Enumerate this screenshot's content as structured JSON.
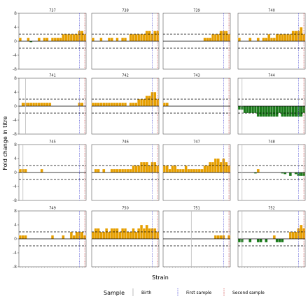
{
  "chart_data": {
    "type": "bar",
    "ylabel": "Fold change in titre",
    "xlabel": "Strain",
    "ylim": [
      -8,
      8
    ],
    "y_ticks": [
      -8,
      -4,
      0,
      4,
      8
    ],
    "reference_lines": {
      "upper": 2,
      "lower": -2,
      "baseline": 0
    },
    "n_strains": 25,
    "legend": {
      "title": "Sample",
      "position": "bottom",
      "items": [
        {
          "label": "Birth",
          "color": "#bdbdbd",
          "style": "solid"
        },
        {
          "label": "First sample",
          "color": "#6a6adb",
          "style": "dotted"
        },
        {
          "label": "Second sample",
          "color": "#d96464",
          "style": "dotted"
        }
      ]
    },
    "colors": {
      "positive": "#e69f00",
      "negative": "#1a7a1a",
      "bar_outline": "#ffffff"
    },
    "panels": [
      {
        "id": "737",
        "birth": null,
        "first": 22,
        "second": 24,
        "values": [
          1,
          0,
          0,
          1,
          -0.3,
          0,
          0,
          1,
          0,
          1,
          1,
          0,
          1,
          1,
          1,
          1,
          2,
          2,
          2,
          2,
          2,
          2,
          3,
          3,
          2
        ]
      },
      {
        "id": "738",
        "birth": null,
        "first": 22,
        "second": 24,
        "values": [
          1,
          0,
          0,
          1,
          0,
          0,
          1,
          1,
          0,
          1,
          0,
          1,
          1,
          0,
          2,
          2,
          2,
          2,
          2,
          2,
          3,
          3,
          2,
          3,
          3
        ]
      },
      {
        "id": "739",
        "birth": null,
        "first": 22,
        "second": 24,
        "values": [
          0,
          0,
          0,
          0,
          0,
          0,
          0,
          0,
          0,
          0,
          0,
          0,
          0,
          0,
          0,
          1,
          1,
          1,
          2,
          2,
          2,
          3,
          3,
          3,
          2
        ]
      },
      {
        "id": "740",
        "birth": null,
        "first": 22,
        "second": 24,
        "values": [
          1,
          0,
          0,
          0,
          1,
          0,
          0,
          1,
          0,
          1,
          1,
          2,
          1,
          1,
          2,
          2,
          2,
          2,
          2,
          2,
          3,
          3,
          3,
          4,
          2
        ]
      },
      {
        "id": "741",
        "birth": 2,
        "first": 22,
        "second": 24,
        "values": [
          0,
          1,
          1,
          1,
          1,
          1,
          1,
          1,
          1,
          1,
          1,
          1,
          0,
          0,
          0,
          0,
          0,
          0,
          0,
          0,
          0,
          0,
          1,
          1,
          0
        ]
      },
      {
        "id": "742",
        "birth": null,
        "first": 22,
        "second": 24,
        "values": [
          1,
          1,
          1,
          1,
          1,
          1,
          1,
          1,
          1,
          1,
          1,
          1,
          1,
          0,
          1,
          1,
          1,
          2,
          2,
          2,
          3,
          3,
          4,
          4,
          2
        ]
      },
      {
        "id": "743",
        "birth": null,
        "first": 22,
        "second": 24,
        "values": [
          1,
          1,
          0,
          0,
          0,
          0,
          0,
          0,
          0,
          0,
          0,
          0,
          0,
          0,
          0,
          0,
          0,
          0,
          0,
          0,
          0,
          0,
          0,
          0,
          0
        ]
      },
      {
        "id": "744",
        "birth": 1,
        "first": 22,
        "second": 24,
        "values": [
          -1,
          -1,
          -2,
          -2,
          -2,
          -2,
          -2,
          -3,
          -3,
          -3,
          -3,
          -3,
          -3,
          -3,
          -3,
          -2,
          -3,
          -3,
          -3,
          -3,
          -3,
          -3,
          -3,
          -3,
          -2
        ]
      },
      {
        "id": "745",
        "birth": 1,
        "first": 22,
        "second": 24,
        "values": [
          1,
          1,
          1,
          0,
          0,
          0,
          0,
          0,
          1,
          0,
          0,
          0,
          0,
          0,
          0,
          0,
          0,
          0,
          0,
          0,
          0,
          0,
          0,
          0,
          0
        ]
      },
      {
        "id": "746",
        "birth": null,
        "first": 22,
        "second": 24,
        "values": [
          0,
          1,
          1,
          0,
          1,
          0,
          0,
          1,
          1,
          1,
          1,
          1,
          1,
          1,
          1,
          2,
          2,
          2,
          3,
          3,
          3,
          2,
          3,
          3,
          2
        ]
      },
      {
        "id": "747",
        "birth": null,
        "first": 22,
        "second": 24,
        "values": [
          2,
          2,
          1,
          2,
          2,
          1,
          1,
          1,
          2,
          1,
          1,
          1,
          1,
          1,
          1,
          2,
          2,
          3,
          3,
          4,
          4,
          3,
          4,
          3,
          2
        ]
      },
      {
        "id": "748",
        "birth": 1,
        "first": 22,
        "second": 24,
        "values": [
          0,
          0,
          0,
          0,
          0,
          0,
          -0.3,
          1,
          0,
          0,
          0,
          0,
          0,
          0,
          0,
          0,
          -0.3,
          -0.5,
          0,
          -1,
          0,
          -0.5,
          -1,
          -1,
          -1
        ]
      },
      {
        "id": "749",
        "birth": null,
        "first": 22,
        "second": 24,
        "values": [
          1,
          1,
          1,
          0,
          0,
          0,
          0,
          0,
          0,
          0,
          0,
          0,
          1,
          0,
          0,
          0,
          1,
          0,
          0,
          2,
          1,
          2,
          2,
          2,
          1
        ]
      },
      {
        "id": "750",
        "birth": null,
        "first": 22,
        "second": 24,
        "values": [
          2,
          3,
          3,
          2,
          2,
          3,
          2,
          3,
          3,
          3,
          2,
          3,
          3,
          2,
          2,
          3,
          2,
          3,
          4,
          3,
          4,
          3,
          3,
          3,
          2
        ]
      },
      {
        "id": "751",
        "birth": 10,
        "first": 22,
        "second": 24,
        "values": [
          0,
          0,
          0,
          0,
          0,
          0,
          0,
          0,
          0,
          0,
          0,
          0,
          0,
          0,
          0,
          0,
          0,
          0,
          0,
          1,
          1,
          1,
          1,
          0,
          1
        ]
      },
      {
        "id": "752",
        "birth": 1,
        "first": 22,
        "second": 24,
        "values": [
          -1,
          -1,
          0,
          0,
          -1,
          0,
          0,
          -1,
          -1,
          0,
          -1,
          0,
          0,
          1,
          -1,
          -1,
          -1,
          0,
          0,
          2,
          2,
          2,
          3,
          4,
          3
        ]
      }
    ]
  }
}
